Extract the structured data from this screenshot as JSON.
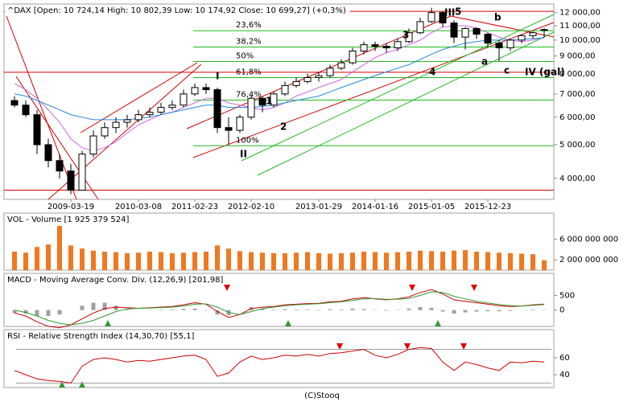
{
  "chart_data": [
    {
      "type": "candlestick",
      "title": "^DAX [Open: 10 724,14  High: 10 802,39  Low: 10 174,92  Close: 10 699,27] (+0,3%)",
      "categories": [
        null,
        null,
        null,
        null,
        null,
        "2009-03-19",
        null,
        null,
        null,
        null,
        null,
        "2010-03-08",
        null,
        null,
        null,
        null,
        "2011-02-23",
        null,
        null,
        null,
        null,
        "2012-02-10",
        null,
        null,
        null,
        null,
        null,
        "2013-01-29",
        null,
        null,
        null,
        null,
        "2014-01-16",
        null,
        null,
        null,
        null,
        "2015-01-05",
        null,
        null,
        null,
        null,
        "2015-12-23",
        null,
        null,
        null,
        null,
        null
      ],
      "open": [
        6700,
        6500,
        6100,
        5000,
        4500,
        4200,
        3700,
        4700,
        5300,
        5600,
        5800,
        5900,
        6100,
        6200,
        6400,
        6500,
        7000,
        7300,
        7200,
        5600,
        5500,
        6000,
        6800,
        6500,
        7000,
        7400,
        7600,
        7800,
        7900,
        8300,
        8600,
        9300,
        9700,
        9600,
        9500,
        9900,
        10500,
        11300,
        12000,
        11200,
        10200,
        10800,
        10400,
        9800,
        9500,
        10000,
        10300,
        10724.14
      ],
      "high": [
        6900,
        6700,
        6300,
        5200,
        4700,
        4400,
        4800,
        5500,
        5800,
        6000,
        6100,
        6300,
        6400,
        6600,
        6700,
        7200,
        7500,
        7500,
        7300,
        6000,
        6100,
        6900,
        6900,
        7100,
        7600,
        7800,
        8000,
        8100,
        8500,
        8800,
        9500,
        9900,
        9900,
        9800,
        10100,
        10800,
        11600,
        12390,
        12100,
        11400,
        10900,
        10900,
        10500,
        10000,
        10100,
        10400,
        10600,
        10802.39
      ],
      "low": [
        6400,
        6000,
        4700,
        4300,
        4000,
        3600,
        3700,
        4600,
        5200,
        5400,
        5600,
        5800,
        6000,
        6100,
        6300,
        6400,
        6900,
        7000,
        5400,
        5000,
        5400,
        5900,
        6200,
        6400,
        6900,
        7300,
        7500,
        7600,
        7800,
        8200,
        8500,
        9100,
        9300,
        9200,
        9300,
        9800,
        10400,
        11200,
        10900,
        9800,
        9400,
        10100,
        9500,
        8700,
        9300,
        9800,
        10100,
        10174.92
      ],
      "close": [
        6500,
        6100,
        5000,
        4500,
        4200,
        3700,
        4700,
        5300,
        5600,
        5800,
        5900,
        6100,
        6200,
        6400,
        6500,
        7000,
        7300,
        7200,
        5600,
        5500,
        6000,
        6800,
        6500,
        7000,
        7400,
        7600,
        7800,
        7900,
        8300,
        8600,
        9300,
        9700,
        9600,
        9500,
        9900,
        10500,
        11300,
        12000,
        11200,
        10200,
        10800,
        10400,
        9800,
        9500,
        10000,
        10300,
        10500,
        10699.27
      ],
      "up_color": "#ffffff",
      "down_color": "#000000",
      "overlays": [
        {
          "color": "#cc66dd",
          "values": [
            7500,
            7200,
            6800,
            6300,
            5800,
            5200,
            4900,
            4800,
            4900,
            5100,
            5400,
            5700,
            5900,
            6100,
            6200,
            6400,
            6600,
            6800,
            6800,
            6600,
            6500,
            6400,
            6300,
            6400,
            6600,
            6900,
            7100,
            7300,
            7500,
            7700,
            8100,
            8500,
            8900,
            9200,
            9400,
            9700,
            10000,
            10500,
            10900,
            11000,
            11000,
            10800,
            10500,
            10200,
            10000,
            9900,
            10000,
            10200
          ]
        },
        {
          "color": "#2288dd",
          "values": [
            7000,
            6900,
            6700,
            6500,
            6300,
            6100,
            6000,
            5900,
            5900,
            5900,
            5900,
            5950,
            6000,
            6100,
            6200,
            6300,
            6400,
            6500,
            6500,
            6400,
            6400,
            6400,
            6450,
            6500,
            6600,
            6700,
            6800,
            6900,
            7100,
            7300,
            7500,
            7700,
            7900,
            8100,
            8300,
            8500,
            8800,
            9100,
            9400,
            9600,
            9800,
            9900,
            10000,
            10000,
            10000,
            10050,
            10100,
            10150
          ]
        }
      ],
      "log_scale": true,
      "ylim": [
        3480,
        12700
      ],
      "yticks": [
        {
          "value": 12000,
          "label": "12 000,00"
        },
        {
          "value": 11000,
          "label": "11 000,00"
        },
        {
          "value": 10000,
          "label": "10 000,00"
        },
        {
          "value": 9000,
          "label": "9 000,00"
        },
        {
          "value": 8000,
          "label": "8 000,00"
        },
        {
          "value": 7000,
          "label": "7 000,00"
        },
        {
          "value": 6000,
          "label": "6 000,00"
        },
        {
          "value": 5000,
          "label": "5 000,00"
        },
        {
          "value": 4000,
          "label": "4 000,00"
        }
      ],
      "fib_color": "#22bb22",
      "fib_levels": [
        {
          "value": 10640,
          "label": "23,6%"
        },
        {
          "value": 9550,
          "label": "38,2%"
        },
        {
          "value": 8680,
          "label": "50%"
        },
        {
          "value": 7800,
          "label": "61,8%"
        },
        {
          "value": 6720,
          "label": "76,4%"
        },
        {
          "value": 4965,
          "label": "100%"
        }
      ],
      "hline_color": "#d00000",
      "hlines": [
        12100,
        8080,
        3700
      ],
      "wave_labels": [
        {
          "text": "I",
          "color": "#660099"
        },
        {
          "text": "II",
          "color": "#660099"
        },
        {
          "text": "III",
          "color": "#660099"
        },
        {
          "text": "5",
          "color": "#cc0000"
        },
        {
          "text": "1",
          "color": "#cc0000"
        },
        {
          "text": "2",
          "color": "#cc0000"
        },
        {
          "text": "3",
          "color": "#cc0000"
        },
        {
          "text": "4",
          "color": "#cc0000"
        },
        {
          "text": "a",
          "color": "#cc0000"
        },
        {
          "text": "b",
          "color": "#cc0000"
        },
        {
          "text": "c",
          "color": "#cc0000"
        },
        {
          "text": "IV (gal)",
          "color": "#660099"
        }
      ]
    },
    {
      "type": "bar",
      "title": "VOL - Volume [1 925 379 524]",
      "values": [
        3600000000,
        3400000000,
        4500000000,
        5000000000,
        8600000000,
        4800000000,
        4200000000,
        3800000000,
        3600000000,
        3500000000,
        3300000000,
        3400000000,
        3600000000,
        3500000000,
        3300000000,
        3400000000,
        3500000000,
        3600000000,
        4800000000,
        4200000000,
        3700000000,
        3500000000,
        3400000000,
        3300000000,
        3300000000,
        3400000000,
        3500000000,
        3300000000,
        3200000000,
        3300000000,
        3400000000,
        3600000000,
        3500000000,
        3400000000,
        3500000000,
        3600000000,
        3800000000,
        3700000000,
        3600000000,
        3800000000,
        3900000000,
        3600000000,
        3500000000,
        3400000000,
        3300000000,
        3200000000,
        3100000000,
        1925379524
      ],
      "color": "#f07820",
      "ylim": [
        0,
        11100000000
      ],
      "yticks": [
        {
          "value": 6000000000,
          "label": "6 000 000 000"
        },
        {
          "value": 2000000000,
          "label": "2 000 000 000"
        }
      ]
    },
    {
      "type": "line",
      "title": "MACD - Moving Average Conv. Div. (12,26,9) [201,98]",
      "histogram": {
        "color": "#a0a0a0",
        "values": [
          -100,
          -120,
          -200,
          -200,
          -150,
          0,
          150,
          250,
          250,
          150,
          40,
          0,
          10,
          15,
          20,
          40,
          50,
          -10,
          -150,
          -170,
          0,
          100,
          50,
          20,
          30,
          20,
          20,
          15,
          30,
          20,
          50,
          40,
          -10,
          -20,
          10,
          50,
          100,
          80,
          -50,
          -120,
          -80,
          -50,
          -40,
          -40,
          -30,
          0,
          20,
          11.98
        ]
      },
      "series": [
        {
          "color": "#cc0000",
          "values": [
            -100,
            -200,
            -400,
            -550,
            -600,
            -500,
            -300,
            -100,
            50,
            100,
            80,
            60,
            80,
            100,
            120,
            180,
            250,
            200,
            -50,
            -250,
            -150,
            50,
            100,
            120,
            180,
            200,
            220,
            230,
            280,
            300,
            380,
            420,
            380,
            350,
            380,
            450,
            600,
            700,
            550,
            350,
            300,
            250,
            200,
            150,
            120,
            140,
            180,
            201.98
          ]
        },
        {
          "color": "#339933",
          "values": [
            0,
            -80,
            -200,
            -350,
            -450,
            -500,
            -450,
            -350,
            -200,
            -50,
            40,
            60,
            70,
            85,
            100,
            140,
            200,
            210,
            100,
            -80,
            -150,
            -50,
            50,
            100,
            150,
            180,
            200,
            215,
            250,
            280,
            330,
            380,
            390,
            370,
            370,
            400,
            500,
            620,
            600,
            470,
            380,
            300,
            240,
            190,
            150,
            140,
            160,
            190
          ]
        }
      ],
      "ylim": [
        -556,
        1250
      ],
      "yticks": [
        500,
        0
      ]
    },
    {
      "type": "line",
      "title": "RSI - Relative Strength Index (14,30,70) [55,1]",
      "series": [
        {
          "color": "#cc0000",
          "values": [
            45,
            40,
            35,
            33,
            32,
            30,
            50,
            58,
            60,
            58,
            55,
            57,
            56,
            58,
            60,
            62,
            63,
            58,
            38,
            42,
            55,
            62,
            58,
            60,
            63,
            62,
            64,
            62,
            65,
            66,
            68,
            70,
            63,
            60,
            64,
            70,
            72,
            71,
            55,
            45,
            55,
            52,
            48,
            45,
            55,
            54,
            56,
            55.1
          ]
        }
      ],
      "hline_color": "#a0a0a0",
      "hlines": [
        70,
        30
      ],
      "ylim": [
        24.8,
        93.3
      ],
      "yticks": [
        60,
        40
      ]
    }
  ],
  "footer": "(C)Stooq"
}
